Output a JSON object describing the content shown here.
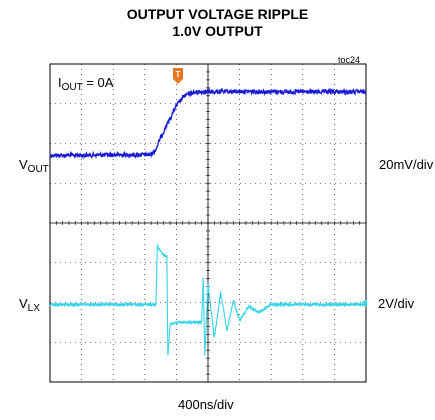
{
  "title_line1": "OUTPUT VOLTAGE RIPPLE",
  "title_line2": "1.0V OUTPUT",
  "figure_tag": "toc24",
  "colors": {
    "vout": "#1a1ad6",
    "vlx": "#33d6e8",
    "trigger": "#e87722",
    "grid": "#000000"
  },
  "channels": {
    "vout": {
      "label_main": "V",
      "label_sub": "OUT",
      "scale": "20mV/div"
    },
    "vlx": {
      "label_main": "V",
      "label_sub": "LX",
      "scale": "2V/div"
    }
  },
  "annotation": {
    "label_main": "I",
    "label_sub": "OUT",
    "label_rest": " = 0A"
  },
  "trigger_marker": "T",
  "time_scale": "400ns/div",
  "chart_data": {
    "type": "line",
    "x_unit": "div",
    "xlim": [
      0,
      10
    ],
    "ylim": [
      0,
      8
    ],
    "grid": true,
    "series": [
      {
        "name": "VOUT",
        "x": [
          0,
          3.2,
          3.35,
          3.5,
          3.75,
          4.0,
          4.25,
          4.5,
          4.75,
          5.0,
          6.0,
          8.0,
          10.0
        ],
        "y": [
          5.7,
          5.72,
          5.85,
          6.15,
          6.55,
          6.95,
          7.2,
          7.28,
          7.3,
          7.3,
          7.31,
          7.3,
          7.3
        ]
      },
      {
        "name": "VLX",
        "x": [
          0,
          3.35,
          3.4,
          3.45,
          3.6,
          3.7,
          3.73,
          3.8,
          3.95,
          4.5,
          4.8,
          4.85,
          4.9,
          5.0,
          5.2,
          5.4,
          5.6,
          5.8,
          6.0,
          6.3,
          6.6,
          7.0,
          8.0,
          10.0
        ],
        "y": [
          1.95,
          1.95,
          3.45,
          3.35,
          3.2,
          3.15,
          0.6,
          1.45,
          1.5,
          1.5,
          1.5,
          2.6,
          0.7,
          2.45,
          1.1,
          2.25,
          1.3,
          2.05,
          1.55,
          1.9,
          1.75,
          1.95,
          1.95,
          1.95
        ]
      }
    ]
  }
}
